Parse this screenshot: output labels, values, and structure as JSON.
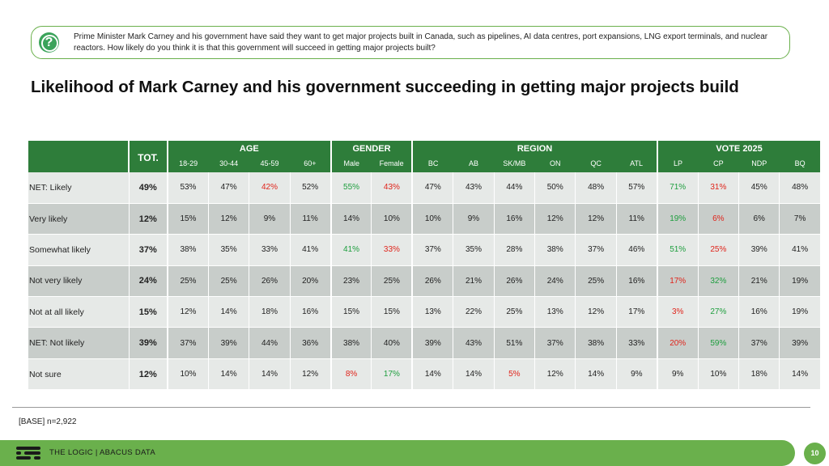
{
  "question": {
    "icon": "question-icon",
    "text": "Prime Minister Mark Carney and his government have said they want to get major projects built in Canada, such as pipelines, AI data centres, port expansions, LNG export terminals, and nuclear reactors. How likely do you think it is that this government will succeed in getting major projects built?"
  },
  "title": "Likelihood of Mark Carney and his government succeeding in getting major projects build",
  "table": {
    "tot_header": "TOT.",
    "groups": [
      {
        "label": "AGE",
        "columns": [
          "18-29",
          "30-44",
          "45-59",
          "60+"
        ]
      },
      {
        "label": "GENDER",
        "columns": [
          "Male",
          "Female"
        ]
      },
      {
        "label": "REGION",
        "columns": [
          "BC",
          "AB",
          "SK/MB",
          "ON",
          "QC",
          "ATL"
        ]
      },
      {
        "label": "VOTE 2025",
        "columns": [
          "LP",
          "CP",
          "NDP",
          "BQ"
        ]
      }
    ],
    "rows": [
      {
        "label": "NET: Likely",
        "tot": "49%",
        "values": [
          "53%",
          "47%",
          "42%",
          "52%",
          "55%",
          "43%",
          "47%",
          "43%",
          "44%",
          "50%",
          "48%",
          "57%",
          "71%",
          "31%",
          "45%",
          "48%"
        ],
        "highlight": [
          "",
          "",
          "red",
          "",
          "green",
          "red",
          "",
          "",
          "",
          "",
          "",
          "",
          "green",
          "red",
          "",
          ""
        ]
      },
      {
        "label": "Very likely",
        "tot": "12%",
        "values": [
          "15%",
          "12%",
          "9%",
          "11%",
          "14%",
          "10%",
          "10%",
          "9%",
          "16%",
          "12%",
          "12%",
          "11%",
          "19%",
          "6%",
          "6%",
          "7%"
        ],
        "highlight": [
          "",
          "",
          "",
          "",
          "",
          "",
          "",
          "",
          "",
          "",
          "",
          "",
          "green",
          "red",
          "",
          ""
        ]
      },
      {
        "label": "Somewhat likely",
        "tot": "37%",
        "values": [
          "38%",
          "35%",
          "33%",
          "41%",
          "41%",
          "33%",
          "37%",
          "35%",
          "28%",
          "38%",
          "37%",
          "46%",
          "51%",
          "25%",
          "39%",
          "41%"
        ],
        "highlight": [
          "",
          "",
          "",
          "",
          "green",
          "red",
          "",
          "",
          "",
          "",
          "",
          "",
          "green",
          "red",
          "",
          ""
        ]
      },
      {
        "label": "Not very likely",
        "tot": "24%",
        "values": [
          "25%",
          "25%",
          "26%",
          "20%",
          "23%",
          "25%",
          "26%",
          "21%",
          "26%",
          "24%",
          "25%",
          "16%",
          "17%",
          "32%",
          "21%",
          "19%"
        ],
        "highlight": [
          "",
          "",
          "",
          "",
          "",
          "",
          "",
          "",
          "",
          "",
          "",
          "",
          "red",
          "green",
          "",
          ""
        ]
      },
      {
        "label": "Not at all likely",
        "tot": "15%",
        "values": [
          "12%",
          "14%",
          "18%",
          "16%",
          "15%",
          "15%",
          "13%",
          "22%",
          "25%",
          "13%",
          "12%",
          "17%",
          "3%",
          "27%",
          "16%",
          "19%"
        ],
        "highlight": [
          "",
          "",
          "",
          "",
          "",
          "",
          "",
          "",
          "",
          "",
          "",
          "",
          "red",
          "green",
          "",
          ""
        ]
      },
      {
        "label": "NET: Not likely",
        "tot": "39%",
        "values": [
          "37%",
          "39%",
          "44%",
          "36%",
          "38%",
          "40%",
          "39%",
          "43%",
          "51%",
          "37%",
          "38%",
          "33%",
          "20%",
          "59%",
          "37%",
          "39%"
        ],
        "highlight": [
          "",
          "",
          "",
          "",
          "",
          "",
          "",
          "",
          "",
          "",
          "",
          "",
          "red",
          "green",
          "",
          ""
        ]
      },
      {
        "label": "Not sure",
        "tot": "12%",
        "values": [
          "10%",
          "14%",
          "14%",
          "12%",
          "8%",
          "17%",
          "14%",
          "14%",
          "5%",
          "12%",
          "14%",
          "9%",
          "9%",
          "10%",
          "18%",
          "14%"
        ],
        "highlight": [
          "",
          "",
          "",
          "",
          "red",
          "green",
          "",
          "",
          "red",
          "",
          "",
          "",
          "",
          "",
          "",
          ""
        ]
      }
    ]
  },
  "base": "[BASE] n=2,922",
  "footer": {
    "logo": "abacus-logo-icon",
    "brand": "THE LOGIC  |  ABACUS DATA",
    "page_number": "10"
  }
}
